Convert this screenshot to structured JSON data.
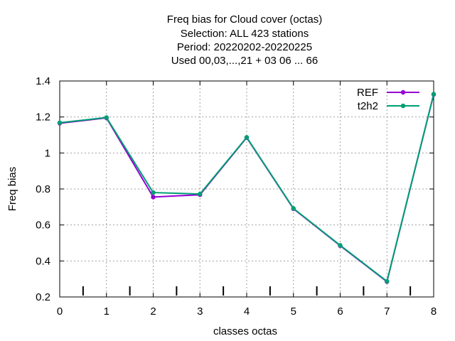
{
  "chart_data": {
    "type": "line",
    "title_lines": [
      "Freq bias  for Cloud cover (octas)",
      "Selection: ALL    423 stations",
      "Period: 20220202-20220225",
      "Used  00,03,...,21  + 03 06 ... 66"
    ],
    "xlabel": "classes octas",
    "ylabel": "Freq bias",
    "xlim": [
      0,
      8
    ],
    "ylim": [
      0.2,
      1.4
    ],
    "xticks": [
      0,
      1,
      2,
      3,
      4,
      5,
      6,
      7,
      8
    ],
    "yticks": [
      0.2,
      0.4,
      0.6,
      0.8,
      1.0,
      1.2,
      1.4
    ],
    "ytick_labels": [
      "0.2",
      "0.4",
      "0.6",
      "0.8",
      "1",
      "1.2",
      "1.4"
    ],
    "grid": true,
    "legend_position": "top-right",
    "minor_marks_x": [
      0.5,
      1.5,
      2.5,
      3.5,
      4.5,
      5.5,
      6.5,
      7.5
    ],
    "x": [
      0,
      1,
      2,
      3,
      4,
      5,
      6,
      7,
      8
    ],
    "series": [
      {
        "name": "REF",
        "color": "#9400d3",
        "values": [
          1.165,
          1.195,
          0.755,
          0.768,
          1.085,
          0.69,
          0.485,
          0.285,
          1.325
        ]
      },
      {
        "name": "t2h2",
        "color": "#009e73",
        "values": [
          1.168,
          1.197,
          0.78,
          0.772,
          1.087,
          0.692,
          0.487,
          0.287,
          1.327
        ]
      }
    ]
  }
}
